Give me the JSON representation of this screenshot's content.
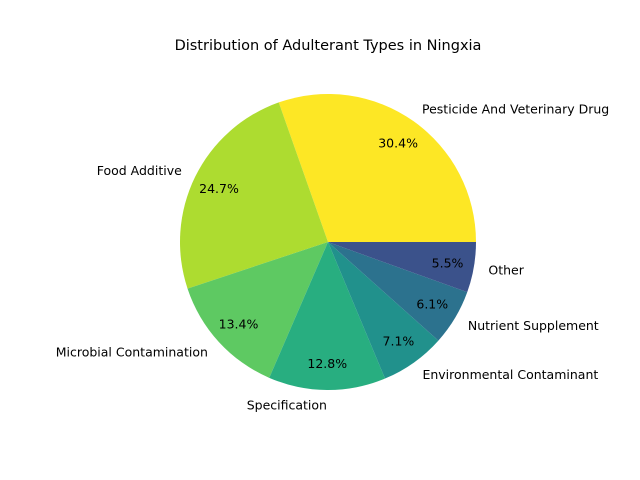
{
  "chart_data": {
    "type": "pie",
    "title": "Distribution of Adulterant Types in Ningxia",
    "slices": [
      {
        "label": "Pesticide And Veterinary Drug",
        "value": 30.4,
        "pct_label": "30.4%",
        "color": "#fde725"
      },
      {
        "label": "Food Additive",
        "value": 24.7,
        "pct_label": "24.7%",
        "color": "#addc30"
      },
      {
        "label": "Microbial Contamination",
        "value": 13.4,
        "pct_label": "13.4%",
        "color": "#5ec962"
      },
      {
        "label": "Specification",
        "value": 12.8,
        "pct_label": "12.8%",
        "color": "#28ae80"
      },
      {
        "label": "Environmental Contaminant",
        "value": 7.1,
        "pct_label": "7.1%",
        "color": "#21918c"
      },
      {
        "label": "Nutrient Supplement",
        "value": 6.1,
        "pct_label": "6.1%",
        "color": "#2c728e"
      },
      {
        "label": "Other",
        "value": 5.5,
        "pct_label": "5.5%",
        "color": "#3b528b"
      }
    ],
    "start_angle_deg": 0,
    "direction": "counterclockwise",
    "legend": "none"
  }
}
